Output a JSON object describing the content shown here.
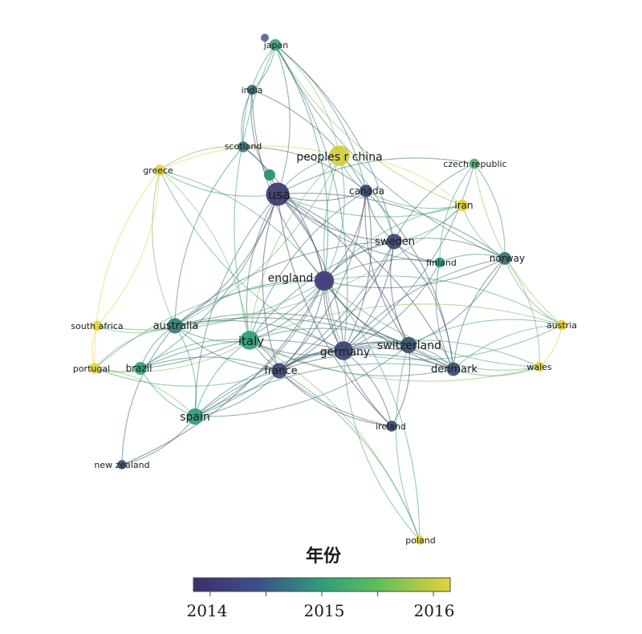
{
  "colors": {
    "y2014": "#3f2f6b",
    "y2015": "#2e9d7a",
    "y2016": "#e5d23a",
    "label": "#1a1a1a"
  },
  "network": {
    "nodes": [
      {
        "id": "usa",
        "label": "usa",
        "year": 2014.1,
        "weight": 1.0
      },
      {
        "id": "peoples-r-china",
        "label": "peoples r china",
        "year": 2015.9,
        "weight": 0.85
      },
      {
        "id": "japan",
        "label": "japan",
        "year": 2015.1,
        "weight": 0.35
      },
      {
        "id": "india",
        "label": "india",
        "year": 2014.6,
        "weight": 0.25
      },
      {
        "id": "scotland",
        "label": "scotland",
        "year": 2014.7,
        "weight": 0.3
      },
      {
        "id": "greece",
        "label": "greece",
        "year": 2016.0,
        "weight": 0.3
      },
      {
        "id": "canada",
        "label": "canada",
        "year": 2014.2,
        "weight": 0.4
      },
      {
        "id": "czech-republic",
        "label": "czech republic",
        "year": 2015.2,
        "weight": 0.25
      },
      {
        "id": "iran",
        "label": "iran",
        "year": 2016.0,
        "weight": 0.35
      },
      {
        "id": "sweden",
        "label": "sweden",
        "year": 2014.2,
        "weight": 0.55
      },
      {
        "id": "finland",
        "label": "finland",
        "year": 2015.0,
        "weight": 0.25
      },
      {
        "id": "norway",
        "label": "norway",
        "year": 2014.6,
        "weight": 0.4
      },
      {
        "id": "england",
        "label": "england",
        "year": 2014.2,
        "weight": 0.8
      },
      {
        "id": "south-africa",
        "label": "south africa",
        "year": 2016.0,
        "weight": 0.25
      },
      {
        "id": "australia",
        "label": "australia",
        "year": 2014.7,
        "weight": 0.55
      },
      {
        "id": "italy",
        "label": "italy",
        "year": 2015.0,
        "weight": 0.75
      },
      {
        "id": "germany",
        "label": "germany",
        "year": 2014.2,
        "weight": 0.75
      },
      {
        "id": "switzerland",
        "label": "switzerland",
        "year": 2014.3,
        "weight": 0.6
      },
      {
        "id": "austria",
        "label": "austria",
        "year": 2016.0,
        "weight": 0.25
      },
      {
        "id": "portugal",
        "label": "portugal",
        "year": 2016.0,
        "weight": 0.3
      },
      {
        "id": "brazil",
        "label": "brazil",
        "year": 2015.0,
        "weight": 0.4
      },
      {
        "id": "france",
        "label": "france",
        "year": 2014.2,
        "weight": 0.55
      },
      {
        "id": "denmark",
        "label": "denmark",
        "year": 2014.3,
        "weight": 0.45
      },
      {
        "id": "wales",
        "label": "wales",
        "year": 2016.0,
        "weight": 0.25
      },
      {
        "id": "spain",
        "label": "spain",
        "year": 2015.0,
        "weight": 0.6
      },
      {
        "id": "ireland",
        "label": "ireland",
        "year": 2014.2,
        "weight": 0.3
      },
      {
        "id": "new-zealand",
        "label": "new zealand",
        "year": 2014.3,
        "weight": 0.2
      },
      {
        "id": "poland",
        "label": "poland",
        "year": 2016.0,
        "weight": 0.2
      }
    ],
    "edges": [
      [
        "usa",
        "peoples-r-china"
      ],
      [
        "usa",
        "canada"
      ],
      [
        "usa",
        "england"
      ],
      [
        "usa",
        "sweden"
      ],
      [
        "usa",
        "germany"
      ],
      [
        "usa",
        "italy"
      ],
      [
        "usa",
        "australia"
      ],
      [
        "usa",
        "france"
      ],
      [
        "usa",
        "switzerland"
      ],
      [
        "usa",
        "japan"
      ],
      [
        "usa",
        "india"
      ],
      [
        "usa",
        "scotland"
      ],
      [
        "usa",
        "greece"
      ],
      [
        "usa",
        "iran"
      ],
      [
        "usa",
        "denmark"
      ],
      [
        "usa",
        "spain"
      ],
      [
        "usa",
        "norway"
      ],
      [
        "usa",
        "finland"
      ],
      [
        "usa",
        "brazil"
      ],
      [
        "usa",
        "ireland"
      ],
      [
        "usa",
        "czech-republic"
      ],
      [
        "peoples-r-china",
        "canada"
      ],
      [
        "peoples-r-china",
        "england"
      ],
      [
        "peoples-r-china",
        "japan"
      ],
      [
        "peoples-r-china",
        "iran"
      ],
      [
        "peoples-r-china",
        "germany"
      ],
      [
        "peoples-r-china",
        "australia"
      ],
      [
        "peoples-r-china",
        "greece"
      ],
      [
        "peoples-r-china",
        "sweden"
      ],
      [
        "peoples-r-china",
        "italy"
      ],
      [
        "japan",
        "india"
      ],
      [
        "japan",
        "scotland"
      ],
      [
        "japan",
        "canada"
      ],
      [
        "japan",
        "iran"
      ],
      [
        "japan",
        "sweden"
      ],
      [
        "japan",
        "norway"
      ],
      [
        "japan",
        "england"
      ],
      [
        "japan",
        "italy"
      ],
      [
        "japan",
        "germany"
      ],
      [
        "india",
        "scotland"
      ],
      [
        "india",
        "canada"
      ],
      [
        "india",
        "england"
      ],
      [
        "scotland",
        "england"
      ],
      [
        "scotland",
        "greece"
      ],
      [
        "scotland",
        "canada"
      ],
      [
        "scotland",
        "australia"
      ],
      [
        "greece",
        "england"
      ],
      [
        "greece",
        "australia"
      ],
      [
        "greece",
        "italy"
      ],
      [
        "greece",
        "portugal"
      ],
      [
        "greece",
        "south-africa"
      ],
      [
        "greece",
        "germany"
      ],
      [
        "canada",
        "england"
      ],
      [
        "canada",
        "sweden"
      ],
      [
        "canada",
        "germany"
      ],
      [
        "canada",
        "italy"
      ],
      [
        "canada",
        "france"
      ],
      [
        "canada",
        "switzerland"
      ],
      [
        "canada",
        "denmark"
      ],
      [
        "czech-republic",
        "sweden"
      ],
      [
        "czech-republic",
        "norway"
      ],
      [
        "czech-republic",
        "finland"
      ],
      [
        "czech-republic",
        "germany"
      ],
      [
        "czech-republic",
        "austria"
      ],
      [
        "iran",
        "sweden"
      ],
      [
        "iran",
        "england"
      ],
      [
        "iran",
        "canada"
      ],
      [
        "iran",
        "norway"
      ],
      [
        "iran",
        "australia"
      ],
      [
        "sweden",
        "england"
      ],
      [
        "sweden",
        "norway"
      ],
      [
        "sweden",
        "finland"
      ],
      [
        "sweden",
        "germany"
      ],
      [
        "sweden",
        "switzerland"
      ],
      [
        "sweden",
        "denmark"
      ],
      [
        "sweden",
        "italy"
      ],
      [
        "sweden",
        "france"
      ],
      [
        "sweden",
        "australia"
      ],
      [
        "sweden",
        "spain"
      ],
      [
        "finland",
        "england"
      ],
      [
        "finland",
        "norway"
      ],
      [
        "finland",
        "denmark"
      ],
      [
        "finland",
        "germany"
      ],
      [
        "norway",
        "denmark"
      ],
      [
        "norway",
        "england"
      ],
      [
        "norway",
        "germany"
      ],
      [
        "norway",
        "switzerland"
      ],
      [
        "norway",
        "austria"
      ],
      [
        "norway",
        "wales"
      ],
      [
        "england",
        "germany"
      ],
      [
        "england",
        "italy"
      ],
      [
        "england",
        "australia"
      ],
      [
        "england",
        "france"
      ],
      [
        "england",
        "switzerland"
      ],
      [
        "england",
        "spain"
      ],
      [
        "england",
        "denmark"
      ],
      [
        "england",
        "brazil"
      ],
      [
        "england",
        "ireland"
      ],
      [
        "england",
        "austria"
      ],
      [
        "england",
        "wales"
      ],
      [
        "england",
        "south-africa"
      ],
      [
        "england",
        "portugal"
      ],
      [
        "england",
        "new-zealand"
      ],
      [
        "australia",
        "italy"
      ],
      [
        "australia",
        "germany"
      ],
      [
        "australia",
        "france"
      ],
      [
        "australia",
        "spain"
      ],
      [
        "australia",
        "brazil"
      ],
      [
        "australia",
        "south-africa"
      ],
      [
        "australia",
        "portugal"
      ],
      [
        "australia",
        "switzerland"
      ],
      [
        "australia",
        "new-zealand"
      ],
      [
        "australia",
        "denmark"
      ],
      [
        "italy",
        "germany"
      ],
      [
        "italy",
        "france"
      ],
      [
        "italy",
        "spain"
      ],
      [
        "italy",
        "switzerland"
      ],
      [
        "italy",
        "brazil"
      ],
      [
        "italy",
        "portugal"
      ],
      [
        "italy",
        "denmark"
      ],
      [
        "italy",
        "austria"
      ],
      [
        "italy",
        "wales"
      ],
      [
        "italy",
        "poland"
      ],
      [
        "italy",
        "ireland"
      ],
      [
        "germany",
        "switzerland"
      ],
      [
        "germany",
        "france"
      ],
      [
        "germany",
        "denmark"
      ],
      [
        "germany",
        "spain"
      ],
      [
        "germany",
        "ireland"
      ],
      [
        "germany",
        "austria"
      ],
      [
        "germany",
        "wales"
      ],
      [
        "germany",
        "brazil"
      ],
      [
        "switzerland",
        "denmark"
      ],
      [
        "switzerland",
        "france"
      ],
      [
        "switzerland",
        "austria"
      ],
      [
        "switzerland",
        "wales"
      ],
      [
        "switzerland",
        "ireland"
      ],
      [
        "switzerland",
        "spain"
      ],
      [
        "france",
        "spain"
      ],
      [
        "france",
        "brazil"
      ],
      [
        "france",
        "denmark"
      ],
      [
        "france",
        "ireland"
      ],
      [
        "france",
        "portugal"
      ],
      [
        "denmark",
        "wales"
      ],
      [
        "denmark",
        "austria"
      ],
      [
        "denmark",
        "spain"
      ],
      [
        "spain",
        "brazil"
      ],
      [
        "spain",
        "portugal"
      ],
      [
        "spain",
        "new-zealand"
      ],
      [
        "spain",
        "switzerland"
      ],
      [
        "brazil",
        "portugal"
      ],
      [
        "south-africa",
        "portugal"
      ],
      [
        "austria",
        "wales"
      ],
      [
        "poland",
        "france"
      ],
      [
        "poland",
        "germany"
      ],
      [
        "poland",
        "england"
      ],
      [
        "poland",
        "switzerland"
      ]
    ]
  },
  "legend": {
    "title": "年份",
    "ticks": [
      "2014",
      "2015",
      "2016"
    ],
    "range": [
      2013.85,
      2016.15
    ]
  }
}
